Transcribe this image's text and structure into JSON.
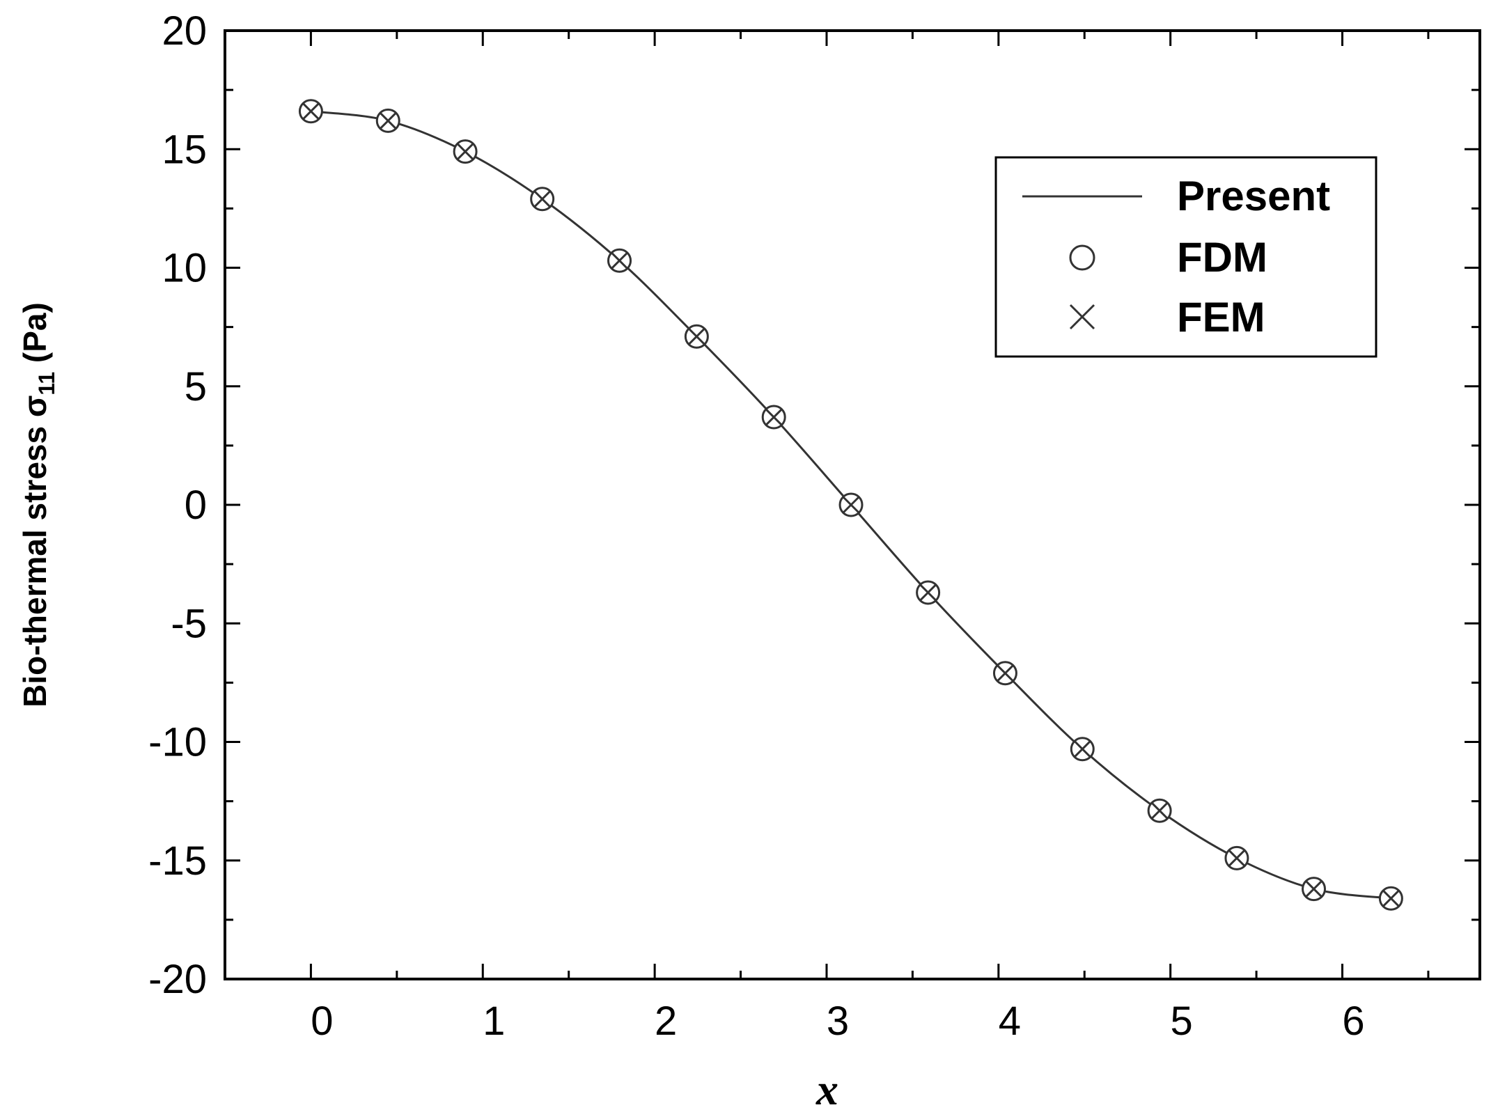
{
  "chart_data": {
    "type": "line",
    "xlabel": "x",
    "ylabel": "Bio-thermal stress σ",
    "ylabel_subscript": "11",
    "ylabel_unit": "(Pa)",
    "xlim": [
      -0.5,
      6.8
    ],
    "ylim": [
      -20,
      20
    ],
    "x_ticks": [
      0,
      1,
      2,
      3,
      4,
      5,
      6
    ],
    "y_ticks": [
      20,
      15,
      10,
      5,
      0,
      -5,
      -10,
      -15,
      -20
    ],
    "x_tick_labels": [
      "0",
      "1",
      "2",
      "3",
      "4",
      "5",
      "6"
    ],
    "y_tick_labels": [
      "20",
      "15",
      "10",
      "5",
      "0",
      "-5",
      "-10",
      "-15",
      "-20"
    ],
    "grid": false,
    "legend_position": "top-right",
    "series": [
      {
        "name": "Present",
        "style": "line",
        "x": [
          0,
          0.449,
          0.898,
          1.346,
          1.795,
          2.244,
          2.693,
          3.142,
          3.59,
          4.039,
          4.488,
          4.937,
          5.386,
          5.834,
          6.283
        ],
        "values": [
          16.6,
          16.2,
          14.9,
          12.9,
          10.3,
          7.1,
          3.7,
          0.0,
          -3.7,
          -7.1,
          -10.3,
          -12.9,
          -14.9,
          -16.2,
          -16.6
        ]
      },
      {
        "name": "FDM",
        "style": "circle",
        "x": [
          0,
          0.449,
          0.898,
          1.346,
          1.795,
          2.244,
          2.693,
          3.142,
          3.59,
          4.039,
          4.488,
          4.937,
          5.386,
          5.834,
          6.283
        ],
        "values": [
          16.6,
          16.2,
          14.9,
          12.9,
          10.3,
          7.1,
          3.7,
          0.0,
          -3.7,
          -7.1,
          -10.3,
          -12.9,
          -14.9,
          -16.2,
          -16.6
        ]
      },
      {
        "name": "FEM",
        "style": "cross",
        "x": [
          0,
          0.449,
          0.898,
          1.346,
          1.795,
          2.244,
          2.693,
          3.142,
          3.59,
          4.039,
          4.488,
          4.937,
          5.386,
          5.834,
          6.283
        ],
        "values": [
          16.6,
          16.2,
          14.9,
          12.9,
          10.3,
          7.1,
          3.7,
          0.0,
          -3.7,
          -7.1,
          -10.3,
          -12.9,
          -14.9,
          -16.2,
          -16.6
        ]
      }
    ]
  },
  "colors": {
    "line": "#333333",
    "axes": "#000000",
    "background": "#ffffff"
  }
}
